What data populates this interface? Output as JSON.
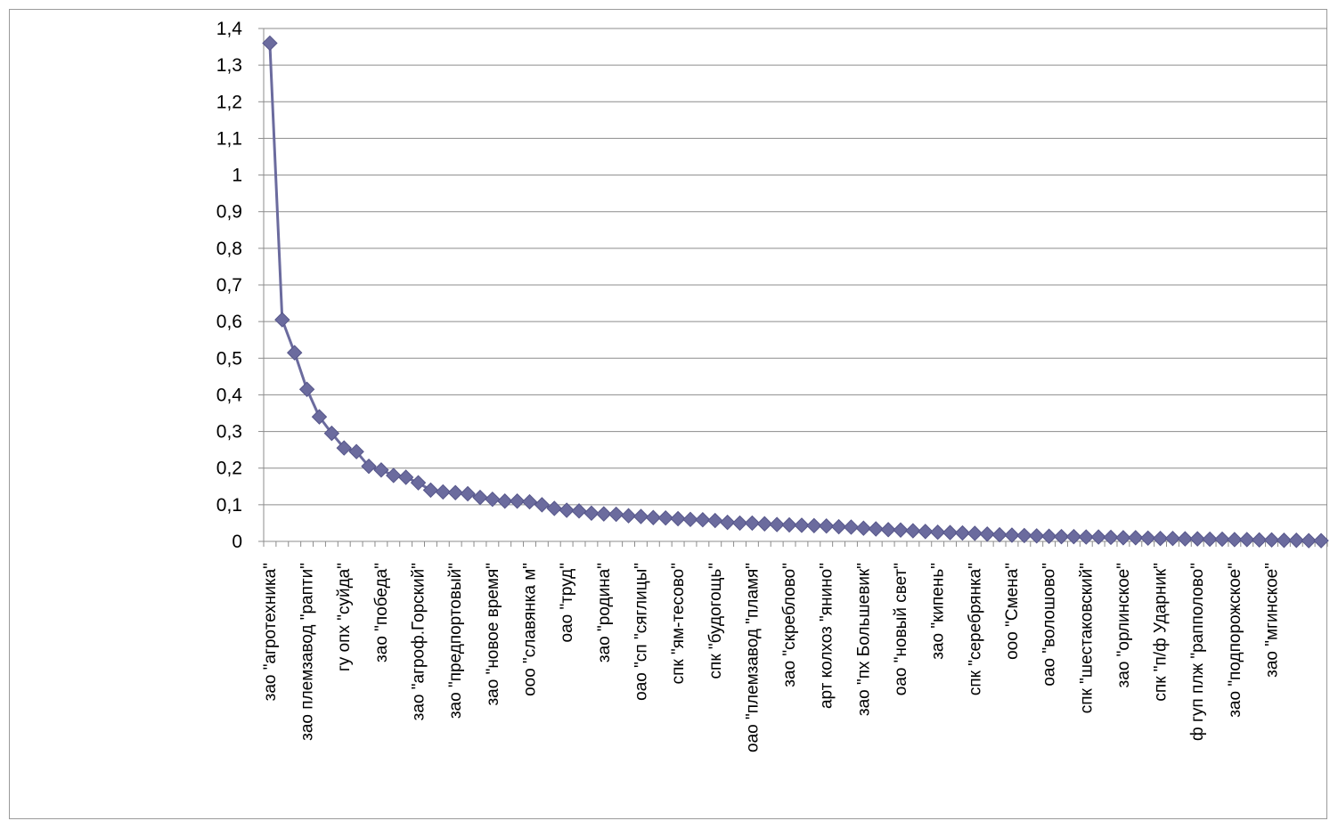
{
  "chart_data": {
    "type": "line",
    "title": "",
    "xlabel": "",
    "ylabel": "",
    "ylim": [
      0,
      1.4
    ],
    "yticks": [
      "0",
      "0,1",
      "0,2",
      "0,3",
      "0,4",
      "0,5",
      "0,6",
      "0,7",
      "0,8",
      "0,9",
      "1",
      "1,1",
      "1,2",
      "1,3",
      "1,4"
    ],
    "grid": true,
    "legend": "none",
    "series_color": "#6b6b9e",
    "marker": "diamond",
    "labeled_categories": [
      "зао \"агротехника\"",
      "зао племзавод \"рапти\"",
      "гу опх \"суйда\"",
      "зао \"победа\"",
      "зао \"агроф.Горский\"",
      "зао \"предпортовый\"",
      "зао \"новое время\"",
      "ооо \"славянка м\"",
      "оао \"труд\"",
      "зао \"родина\"",
      "оао \"сп \"сяглицы\"",
      "спк \"ям-тесово\"",
      "спк \"будогощь\"",
      "оао \"племзавод \"пламя\"",
      "зао \"скреблово\"",
      "арт колхоз \"янино\"",
      "зао \"пх Большевик\"",
      "оао \"новый свет\"",
      "зао \"кипень\"",
      "спк \"серебрянка\"",
      "ооо \"Смена\"",
      "оао \"волошово\"",
      "спк \"шестаковский\"",
      "зао \"орлинское\"",
      "спк \"п/ф Ударник\"",
      "ф гуп плж \"рапполово\"",
      "зао \"подпорожское\"",
      "зао \"мгинское\""
    ],
    "label_every": 3,
    "values": [
      1.36,
      0.605,
      0.515,
      0.415,
      0.34,
      0.295,
      0.255,
      0.245,
      0.205,
      0.195,
      0.18,
      0.175,
      0.16,
      0.14,
      0.135,
      0.133,
      0.13,
      0.12,
      0.115,
      0.11,
      0.11,
      0.108,
      0.1,
      0.09,
      0.085,
      0.083,
      0.077,
      0.075,
      0.074,
      0.07,
      0.068,
      0.065,
      0.064,
      0.062,
      0.06,
      0.059,
      0.057,
      0.052,
      0.05,
      0.05,
      0.048,
      0.046,
      0.045,
      0.044,
      0.043,
      0.042,
      0.04,
      0.039,
      0.036,
      0.034,
      0.032,
      0.031,
      0.029,
      0.027,
      0.025,
      0.024,
      0.023,
      0.022,
      0.02,
      0.018,
      0.017,
      0.016,
      0.015,
      0.014,
      0.013,
      0.013,
      0.012,
      0.012,
      0.011,
      0.01,
      0.01,
      0.009,
      0.008,
      0.008,
      0.007,
      0.007,
      0.006,
      0.006,
      0.005,
      0.005,
      0.004,
      0.004,
      0.003,
      0.003,
      0.002,
      0.002
    ]
  }
}
